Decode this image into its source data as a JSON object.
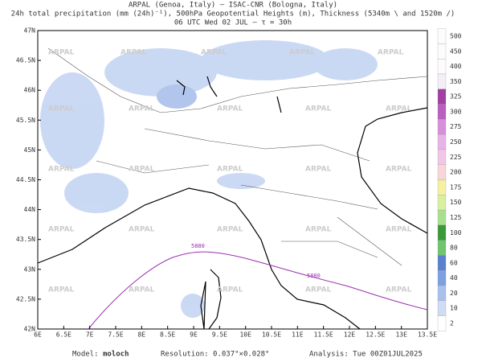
{
  "header": {
    "lines": [
      "ARPAL (Genoa, Italy)  –  ISAC-CNR (Bologna, Italy)",
      "24h total precipitation (mm (24h)⁻¹), 500hPa Geopotential Heights (m), Thickness (5340m \\ and 1520m /)",
      "06 UTC Wed 02 JUL  –  τ = 30h"
    ]
  },
  "map": {
    "lat_labels": [
      "47N",
      "46.5N",
      "46N",
      "45.5N",
      "45N",
      "44.5N",
      "44N",
      "43.5N",
      "43N",
      "42.5N",
      "42N"
    ],
    "lon_labels": [
      "6E",
      "6.5E",
      "7E",
      "7.5E",
      "8E",
      "8.5E",
      "9E",
      "9.5E",
      "10E",
      "10.5E",
      "11E",
      "11.5E",
      "12E",
      "12.5E",
      "13E",
      "13.5E"
    ],
    "contour_label": "5880",
    "watermark": "ARPAL"
  },
  "colorbar": {
    "levels": [
      500,
      450,
      400,
      350,
      325,
      300,
      275,
      250,
      225,
      200,
      175,
      150,
      125,
      100,
      80,
      60,
      40,
      20,
      10,
      2
    ],
    "colors": [
      "#fcfcfc",
      "#fcfcfc",
      "#fcfcfc",
      "#f4eef6",
      "#a13fa5",
      "#b85fc0",
      "#d68fd8",
      "#e8b3e6",
      "#f2c6e8",
      "#f6d6d6",
      "#f6f0a0",
      "#d8f0a0",
      "#a8e090",
      "#3a9a3a",
      "#6fc66f",
      "#5a80d0",
      "#7fa0e0",
      "#a8c0ec",
      "#d0dcf6",
      "#ffffff"
    ]
  },
  "footer": {
    "model_label": "Model:",
    "model": "moloch",
    "resolution": "Resolution: 0.037°×0.028°",
    "analysis": "Analysis: Tue 00Z01JUL2025"
  }
}
